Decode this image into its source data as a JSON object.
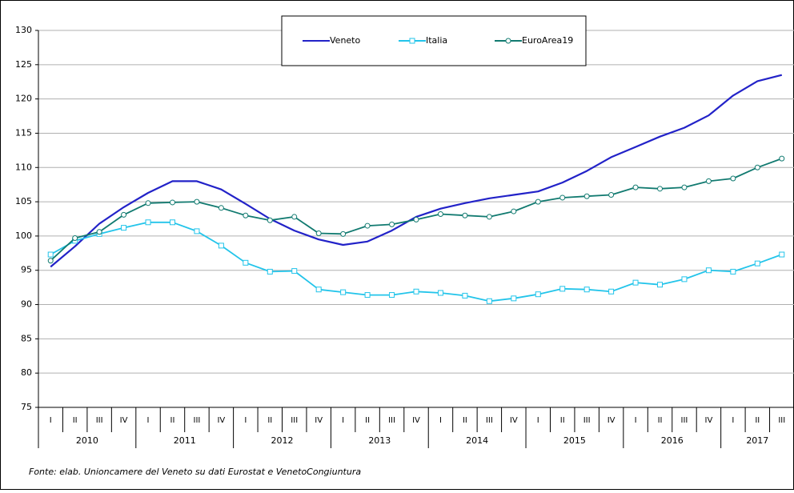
{
  "chart_data": {
    "type": "line",
    "categories": [
      "I",
      "II",
      "III",
      "IV",
      "I",
      "II",
      "III",
      "IV",
      "I",
      "II",
      "III",
      "IV",
      "I",
      "II",
      "III",
      "IV",
      "I",
      "II",
      "III",
      "IV",
      "I",
      "II",
      "III",
      "IV",
      "I",
      "II",
      "III",
      "IV",
      "I",
      "II",
      "III"
    ],
    "years": [
      "2010",
      "2011",
      "2012",
      "2013",
      "2014",
      "2015",
      "2016",
      "2017"
    ],
    "series": [
      {
        "name": "Veneto",
        "color": "#2222c8",
        "marker": "none",
        "values": [
          95.5,
          98.5,
          101.8,
          104.2,
          106.3,
          108.0,
          108.0,
          106.8,
          104.7,
          102.5,
          100.8,
          99.5,
          98.7,
          99.2,
          100.8,
          102.8,
          104.0,
          104.8,
          105.5,
          106.0,
          106.5,
          107.8,
          109.5,
          111.5,
          113.0,
          114.5,
          115.8,
          117.6,
          120.5,
          122.6,
          123.5
        ]
      },
      {
        "name": "Italia",
        "color": "#22c4ea",
        "marker": "square",
        "values": [
          97.3,
          99.3,
          100.3,
          101.2,
          102.0,
          102.0,
          100.7,
          98.6,
          96.1,
          94.8,
          94.9,
          92.2,
          91.8,
          91.4,
          91.4,
          91.9,
          91.7,
          91.3,
          90.5,
          90.9,
          91.5,
          92.3,
          92.2,
          91.9,
          93.2,
          92.9,
          93.7,
          95.0,
          94.8,
          96.0,
          97.3
        ]
      },
      {
        "name": "EuroArea19",
        "color": "#117a70",
        "marker": "circle",
        "values": [
          96.4,
          99.7,
          100.6,
          103.1,
          104.8,
          104.9,
          105.0,
          104.1,
          103.0,
          102.3,
          102.8,
          100.4,
          100.3,
          101.5,
          101.7,
          102.4,
          103.2,
          103.0,
          102.8,
          103.6,
          105.0,
          105.6,
          105.8,
          106.0,
          107.1,
          106.9,
          107.1,
          108.0,
          108.4,
          110.0,
          111.3
        ]
      }
    ],
    "ylim": [
      75,
      130
    ],
    "yticks": [
      75,
      80,
      85,
      90,
      95,
      100,
      105,
      110,
      115,
      120,
      125,
      130
    ],
    "grid": true,
    "footnote": "Fonte: elab. Unioncamere del Veneto su dati Eurostat e VenetoCongiuntura"
  }
}
